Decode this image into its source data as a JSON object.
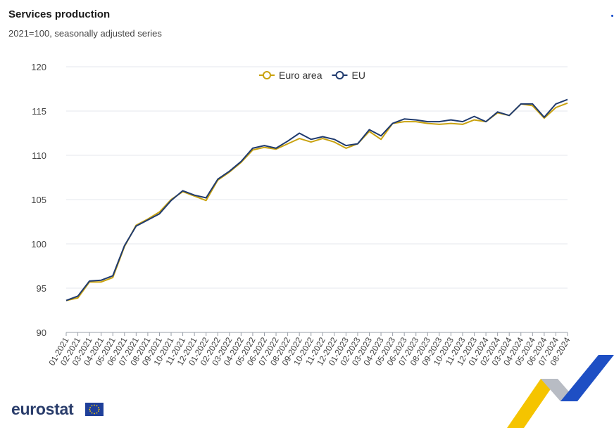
{
  "header": {
    "title": "Services production",
    "subtitle": "2021=100, seasonally adjusted series"
  },
  "footer": {
    "brand": "eurostat"
  },
  "colors": {
    "euro_area": "#c9a20f",
    "eu": "#1f3a6e",
    "grid": "#e4e7ee",
    "brand": "#2a3d6b"
  },
  "chart_data": {
    "type": "line",
    "title": "Services production",
    "subtitle": "2021=100, seasonally adjusted series",
    "xlabel": "",
    "ylabel": "",
    "ylim": [
      90,
      120
    ],
    "yticks": [
      90,
      95,
      100,
      105,
      110,
      115,
      120
    ],
    "grid": true,
    "legend_position": "top-center",
    "categories": [
      "01-2021",
      "02-2021",
      "03-2021",
      "04-2021",
      "05-2021",
      "06-2021",
      "07-2021",
      "08-2021",
      "09-2021",
      "10-2021",
      "11-2021",
      "12-2021",
      "01-2022",
      "02-2022",
      "03-2022",
      "04-2022",
      "05-2022",
      "06-2022",
      "07-2022",
      "08-2022",
      "09-2022",
      "10-2022",
      "11-2022",
      "12-2022",
      "01-2023",
      "02-2023",
      "03-2023",
      "04-2023",
      "05-2023",
      "06-2023",
      "07-2023",
      "08-2023",
      "09-2023",
      "10-2023",
      "11-2023",
      "12-2023",
      "01-2024",
      "02-2024",
      "03-2024",
      "04-2024",
      "05-2024",
      "06-2024",
      "07-2024",
      "08-2024"
    ],
    "series": [
      {
        "name": "Euro area",
        "color": "#c9a20f",
        "values": [
          93.6,
          93.9,
          95.7,
          95.7,
          96.2,
          99.7,
          102.1,
          102.8,
          103.6,
          105.0,
          105.9,
          105.4,
          104.9,
          107.2,
          108.1,
          109.2,
          110.6,
          110.9,
          110.7,
          111.3,
          111.9,
          111.5,
          111.9,
          111.5,
          110.8,
          111.3,
          112.7,
          111.8,
          113.6,
          113.8,
          113.8,
          113.6,
          113.5,
          113.6,
          113.5,
          114.0,
          113.8,
          114.8,
          114.5,
          115.8,
          115.6,
          114.2,
          115.4,
          115.9
        ]
      },
      {
        "name": "EU",
        "color": "#1f3a6e",
        "values": [
          93.6,
          94.1,
          95.8,
          95.9,
          96.4,
          99.8,
          102.0,
          102.7,
          103.4,
          104.9,
          106.0,
          105.5,
          105.2,
          107.3,
          108.2,
          109.3,
          110.8,
          111.1,
          110.8,
          111.6,
          112.5,
          111.8,
          112.1,
          111.8,
          111.1,
          111.3,
          112.9,
          112.2,
          113.6,
          114.1,
          114.0,
          113.8,
          113.8,
          114.0,
          113.8,
          114.4,
          113.8,
          114.9,
          114.5,
          115.8,
          115.8,
          114.3,
          115.8,
          116.3
        ]
      }
    ]
  }
}
